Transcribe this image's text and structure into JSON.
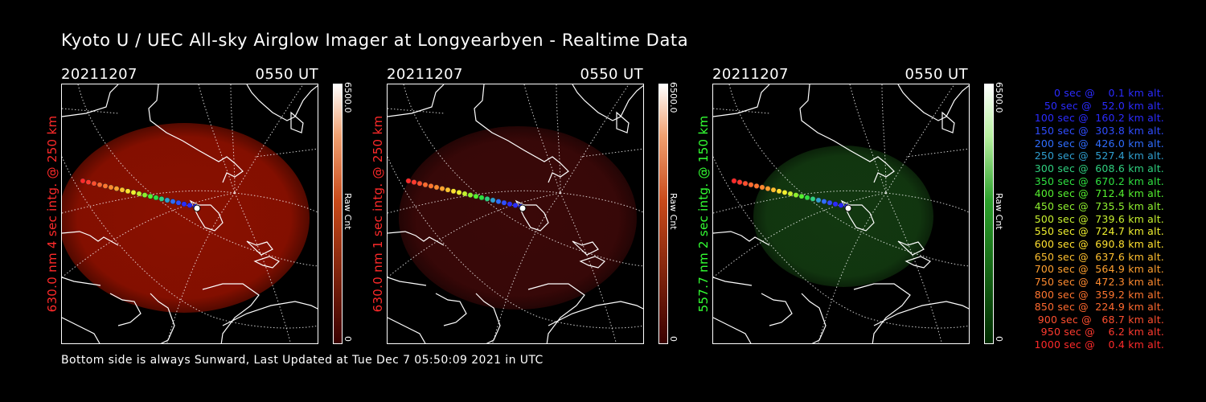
{
  "title": "Kyoto U / UEC All-sky Airglow Imager at Longyearbyen - Realtime Data",
  "footer": "Bottom side is always Sunward, Last Updated at Tue Dec  7 05:50:09 2021 in UTC",
  "panels": [
    {
      "date": "20211207",
      "time": "0550 UT",
      "side_label": "630.0 nm 4 sec intg. @ 250 km",
      "label_color": "#ff2a2a",
      "glow_color": "#8a1000",
      "colorbar_max": "6500.0",
      "colorbar_min": "0",
      "colorbar_unit": "Raw Cnt",
      "colorbar_top": "#ffffff",
      "colorbar_bottom": "#3a0000"
    },
    {
      "date": "20211207",
      "time": "0550 UT",
      "side_label": "630.0 nm 1 sec intg. @ 250 km",
      "label_color": "#ff2a2a",
      "glow_color": "#3a0808",
      "colorbar_max": "6500.0",
      "colorbar_min": "0",
      "colorbar_unit": "Raw Cnt",
      "colorbar_top": "#ffffff",
      "colorbar_bottom": "#3a0000"
    },
    {
      "date": "20211207",
      "time": "0550 UT",
      "side_label": "557.7 nm 2 sec intg. @ 150 km",
      "label_color": "#33ff33",
      "glow_color": "#123810",
      "colorbar_max": "6500.0",
      "colorbar_min": "0",
      "colorbar_unit": "Raw Cnt",
      "colorbar_top": "#ffffff",
      "colorbar_bottom": "#002a00"
    }
  ],
  "trajectory_legend": [
    {
      "text": "0 sec @    0.1 km alt.",
      "color": "#2b2bff"
    },
    {
      "text": "50 sec @   52.0 km alt.",
      "color": "#2b2bff"
    },
    {
      "text": "100 sec @  160.2 km alt.",
      "color": "#2b2bff"
    },
    {
      "text": "150 sec @  303.8 km alt.",
      "color": "#2f4dff"
    },
    {
      "text": "200 sec @  426.0 km alt.",
      "color": "#2f6dff"
    },
    {
      "text": "250 sec @  527.4 km alt.",
      "color": "#2f9fd0"
    },
    {
      "text": "300 sec @  608.6 km alt.",
      "color": "#2fd07f"
    },
    {
      "text": "350 sec @  670.2 km alt.",
      "color": "#2fe040"
    },
    {
      "text": "400 sec @  712.4 km alt.",
      "color": "#55f02f"
    },
    {
      "text": "450 sec @  735.5 km alt.",
      "color": "#8ef02f"
    },
    {
      "text": "500 sec @  739.6 km alt.",
      "color": "#c8f02f"
    },
    {
      "text": "550 sec @  724.7 km alt.",
      "color": "#f0f02f"
    },
    {
      "text": "600 sec @  690.8 km alt.",
      "color": "#ffe02f"
    },
    {
      "text": "650 sec @  637.6 km alt.",
      "color": "#ffc02f"
    },
    {
      "text": "700 sec @  564.9 km alt.",
      "color": "#ffa02f"
    },
    {
      "text": "750 sec @  472.3 km alt.",
      "color": "#ff8a2f"
    },
    {
      "text": "800 sec @  359.2 km alt.",
      "color": "#ff752f"
    },
    {
      "text": "850 sec @  224.9 km alt.",
      "color": "#ff6a2f"
    },
    {
      "text": "900 sec @   68.7 km alt.",
      "color": "#ff4f2f"
    },
    {
      "text": "950 sec @    6.2 km alt.",
      "color": "#ff3a2f"
    },
    {
      "text": "1000 sec @    0.4 km alt.",
      "color": "#ff2a2a"
    }
  ]
}
